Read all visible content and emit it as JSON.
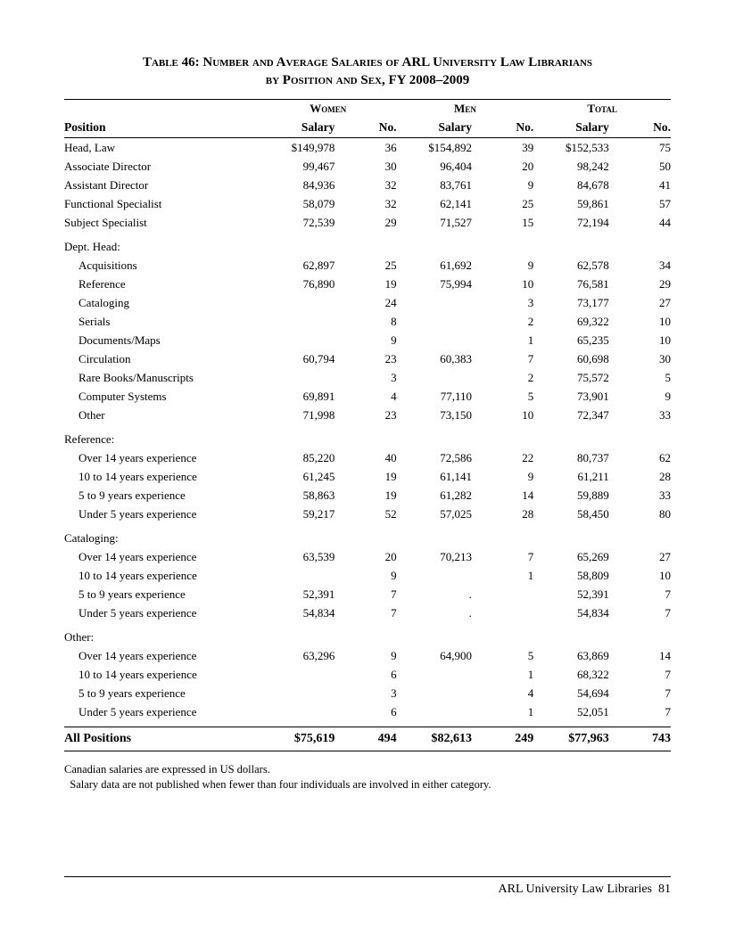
{
  "title_line1": "Table 46: Number and Average Salaries of ARL University Law Librarians",
  "title_line2": "by Position and Sex, FY 2008–2009",
  "group_headers": {
    "women": "Women",
    "men": "Men",
    "total": "Total"
  },
  "col_headers": {
    "position": "Position",
    "salary": "Salary",
    "no": "No."
  },
  "sections": [
    {
      "header": null,
      "rows": [
        {
          "label": "Head, Law",
          "indent": 0,
          "w_sal": "$149,978",
          "w_no": "36",
          "m_sal": "$154,892",
          "m_no": "39",
          "t_sal": "$152,533",
          "t_no": "75"
        },
        {
          "label": "Associate Director",
          "indent": 0,
          "w_sal": "99,467",
          "w_no": "30",
          "m_sal": "96,404",
          "m_no": "20",
          "t_sal": "98,242",
          "t_no": "50"
        },
        {
          "label": "Assistant Director",
          "indent": 0,
          "w_sal": "84,936",
          "w_no": "32",
          "m_sal": "83,761",
          "m_no": "9",
          "t_sal": "84,678",
          "t_no": "41"
        },
        {
          "label": "Functional Specialist",
          "indent": 0,
          "w_sal": "58,079",
          "w_no": "32",
          "m_sal": "62,141",
          "m_no": "25",
          "t_sal": "59,861",
          "t_no": "57"
        },
        {
          "label": "Subject Specialist",
          "indent": 0,
          "w_sal": "72,539",
          "w_no": "29",
          "m_sal": "71,527",
          "m_no": "15",
          "t_sal": "72,194",
          "t_no": "44"
        }
      ]
    },
    {
      "header": "Dept. Head:",
      "rows": [
        {
          "label": "Acquisitions",
          "indent": 1,
          "w_sal": "62,897",
          "w_no": "25",
          "m_sal": "61,692",
          "m_no": "9",
          "t_sal": "62,578",
          "t_no": "34"
        },
        {
          "label": "Reference",
          "indent": 1,
          "w_sal": "76,890",
          "w_no": "19",
          "m_sal": "75,994",
          "m_no": "10",
          "t_sal": "76,581",
          "t_no": "29"
        },
        {
          "label": "Cataloging",
          "indent": 1,
          "w_sal": "",
          "w_no": "24",
          "m_sal": "",
          "m_no": "3",
          "t_sal": "73,177",
          "t_no": "27"
        },
        {
          "label": "Serials",
          "indent": 1,
          "w_sal": "",
          "w_no": "8",
          "m_sal": "",
          "m_no": "2",
          "t_sal": "69,322",
          "t_no": "10"
        },
        {
          "label": "Documents/Maps",
          "indent": 1,
          "w_sal": "",
          "w_no": "9",
          "m_sal": "",
          "m_no": "1",
          "t_sal": "65,235",
          "t_no": "10"
        },
        {
          "label": "Circulation",
          "indent": 1,
          "w_sal": "60,794",
          "w_no": "23",
          "m_sal": "60,383",
          "m_no": "7",
          "t_sal": "60,698",
          "t_no": "30"
        },
        {
          "label": "Rare Books/Manuscripts",
          "indent": 1,
          "w_sal": "",
          "w_no": "3",
          "m_sal": "",
          "m_no": "2",
          "t_sal": "75,572",
          "t_no": "5"
        },
        {
          "label": "Computer Systems",
          "indent": 1,
          "w_sal": "69,891",
          "w_no": "4",
          "m_sal": "77,110",
          "m_no": "5",
          "t_sal": "73,901",
          "t_no": "9"
        },
        {
          "label": "Other",
          "indent": 1,
          "w_sal": "71,998",
          "w_no": "23",
          "m_sal": "73,150",
          "m_no": "10",
          "t_sal": "72,347",
          "t_no": "33"
        }
      ]
    },
    {
      "header": "Reference:",
      "rows": [
        {
          "label": "Over 14 years experience",
          "indent": 1,
          "w_sal": "85,220",
          "w_no": "40",
          "m_sal": "72,586",
          "m_no": "22",
          "t_sal": "80,737",
          "t_no": "62"
        },
        {
          "label": "10 to 14 years experience",
          "indent": 1,
          "w_sal": "61,245",
          "w_no": "19",
          "m_sal": "61,141",
          "m_no": "9",
          "t_sal": "61,211",
          "t_no": "28"
        },
        {
          "label": "5 to 9 years experience",
          "indent": 1,
          "w_sal": "58,863",
          "w_no": "19",
          "m_sal": "61,282",
          "m_no": "14",
          "t_sal": "59,889",
          "t_no": "33"
        },
        {
          "label": "Under 5 years experience",
          "indent": 1,
          "w_sal": "59,217",
          "w_no": "52",
          "m_sal": "57,025",
          "m_no": "28",
          "t_sal": "58,450",
          "t_no": "80"
        }
      ]
    },
    {
      "header": "Cataloging:",
      "rows": [
        {
          "label": "Over 14 years experience",
          "indent": 1,
          "w_sal": "63,539",
          "w_no": "20",
          "m_sal": "70,213",
          "m_no": "7",
          "t_sal": "65,269",
          "t_no": "27"
        },
        {
          "label": "10 to 14 years experience",
          "indent": 1,
          "w_sal": "",
          "w_no": "9",
          "m_sal": "",
          "m_no": "1",
          "t_sal": "58,809",
          "t_no": "10"
        },
        {
          "label": "5 to 9 years experience",
          "indent": 1,
          "w_sal": "52,391",
          "w_no": "7",
          "m_sal": ".",
          "m_no": "",
          "t_sal": "52,391",
          "t_no": "7"
        },
        {
          "label": "Under 5 years experience",
          "indent": 1,
          "w_sal": "54,834",
          "w_no": "7",
          "m_sal": ".",
          "m_no": "",
          "t_sal": "54,834",
          "t_no": "7"
        }
      ]
    },
    {
      "header": "Other:",
      "rows": [
        {
          "label": "Over 14 years experience",
          "indent": 1,
          "w_sal": "63,296",
          "w_no": "9",
          "m_sal": "64,900",
          "m_no": "5",
          "t_sal": "63,869",
          "t_no": "14"
        },
        {
          "label": "10 to 14 years experience",
          "indent": 1,
          "w_sal": "",
          "w_no": "6",
          "m_sal": "",
          "m_no": "1",
          "t_sal": "68,322",
          "t_no": "7"
        },
        {
          "label": "5 to 9 years experience",
          "indent": 1,
          "w_sal": "",
          "w_no": "3",
          "m_sal": "",
          "m_no": "4",
          "t_sal": "54,694",
          "t_no": "7"
        },
        {
          "label": "Under 5 years experience",
          "indent": 1,
          "w_sal": "",
          "w_no": "6",
          "m_sal": "",
          "m_no": "1",
          "t_sal": "52,051",
          "t_no": "7"
        }
      ]
    }
  ],
  "all_row": {
    "label": "All Positions",
    "w_sal": "$75,619",
    "w_no": "494",
    "m_sal": "$82,613",
    "m_no": "249",
    "t_sal": "$77,963",
    "t_no": "743"
  },
  "notes": [
    "Canadian salaries are expressed in US dollars.",
    " Salary data are not published when fewer than four individuals are involved in either category."
  ],
  "footer": {
    "text": "ARL University Law Libraries",
    "page": "81"
  }
}
